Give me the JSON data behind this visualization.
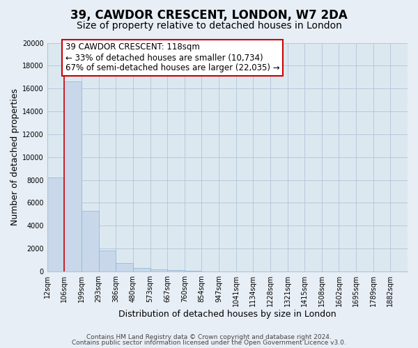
{
  "title": "39, CAWDOR CRESCENT, LONDON, W7 2DA",
  "subtitle": "Size of property relative to detached houses in London",
  "xlabel": "Distribution of detached houses by size in London",
  "ylabel": "Number of detached properties",
  "bar_labels": [
    "12sqm",
    "106sqm",
    "199sqm",
    "293sqm",
    "386sqm",
    "480sqm",
    "573sqm",
    "667sqm",
    "760sqm",
    "854sqm",
    "947sqm",
    "1041sqm",
    "1134sqm",
    "1228sqm",
    "1321sqm",
    "1415sqm",
    "1508sqm",
    "1602sqm",
    "1695sqm",
    "1789sqm",
    "1882sqm"
  ],
  "bar_heights": [
    8200,
    16600,
    5300,
    1850,
    750,
    320,
    200,
    130,
    80,
    0,
    0,
    0,
    0,
    0,
    0,
    0,
    0,
    0,
    0,
    0,
    0
  ],
  "bar_color": "#c8d8ea",
  "bar_edge_color": "#8ab4d4",
  "ylim": [
    0,
    20000
  ],
  "yticks": [
    0,
    2000,
    4000,
    6000,
    8000,
    10000,
    12000,
    14000,
    16000,
    18000,
    20000
  ],
  "property_line_x": 1,
  "property_line_color": "#cc0000",
  "annotation_title": "39 CAWDOR CRESCENT: 118sqm",
  "annotation_line1": "← 33% of detached houses are smaller (10,734)",
  "annotation_line2": "67% of semi-detached houses are larger (22,035) →",
  "annotation_box_color": "#ffffff",
  "annotation_box_edge": "#cc0000",
  "footer1": "Contains HM Land Registry data © Crown copyright and database right 2024.",
  "footer2": "Contains public sector information licensed under the Open Government Licence v3.0.",
  "background_color": "#e8eef5",
  "plot_bg_color": "#dce8f0",
  "grid_color": "#b0c4d8",
  "title_fontsize": 12,
  "subtitle_fontsize": 10,
  "axis_label_fontsize": 9,
  "tick_fontsize": 7,
  "annotation_fontsize": 8.5,
  "footer_fontsize": 6.5,
  "n_bins": 21
}
